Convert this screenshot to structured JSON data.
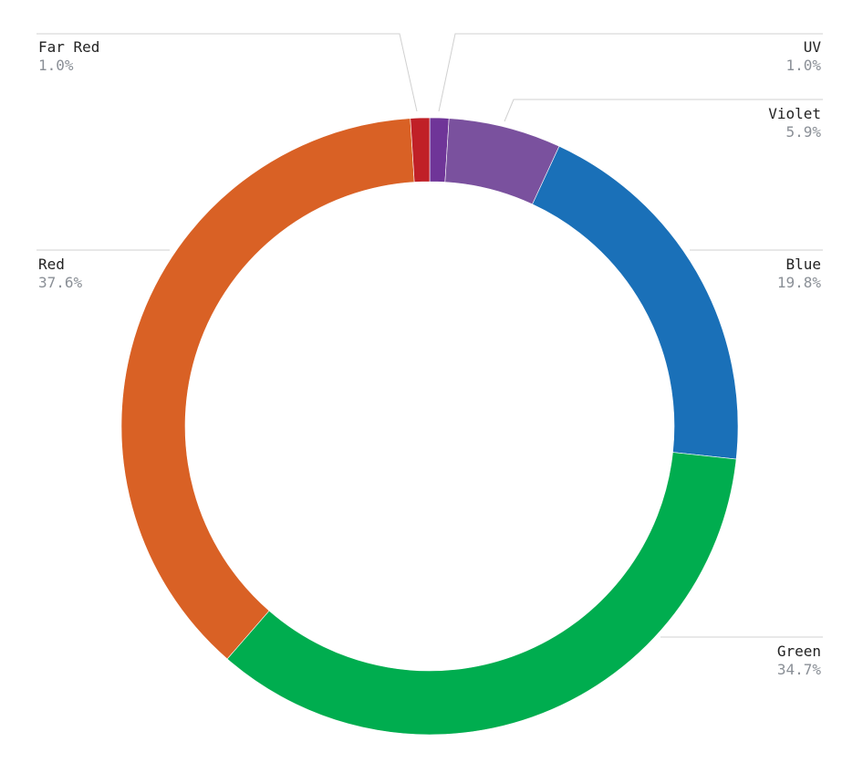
{
  "chart_data": {
    "type": "pie",
    "donut": true,
    "start": "top",
    "direction": "clockwise",
    "slices": [
      {
        "label": "UV",
        "value": 1.0,
        "value_label": "1.0%",
        "color": "#6f3598"
      },
      {
        "label": "Violet",
        "value": 5.9,
        "value_label": "5.9%",
        "color": "#7a519e"
      },
      {
        "label": "Blue",
        "value": 19.8,
        "value_label": "19.8%",
        "color": "#1a70b8"
      },
      {
        "label": "Green",
        "value": 34.7,
        "value_label": "34.7%",
        "color": "#00ad4f"
      },
      {
        "label": "Red",
        "value": 37.6,
        "value_label": "37.6%",
        "color": "#d96125"
      },
      {
        "label": "Far Red",
        "value": 1.0,
        "value_label": "1.0%",
        "color": "#c02027"
      }
    ]
  }
}
